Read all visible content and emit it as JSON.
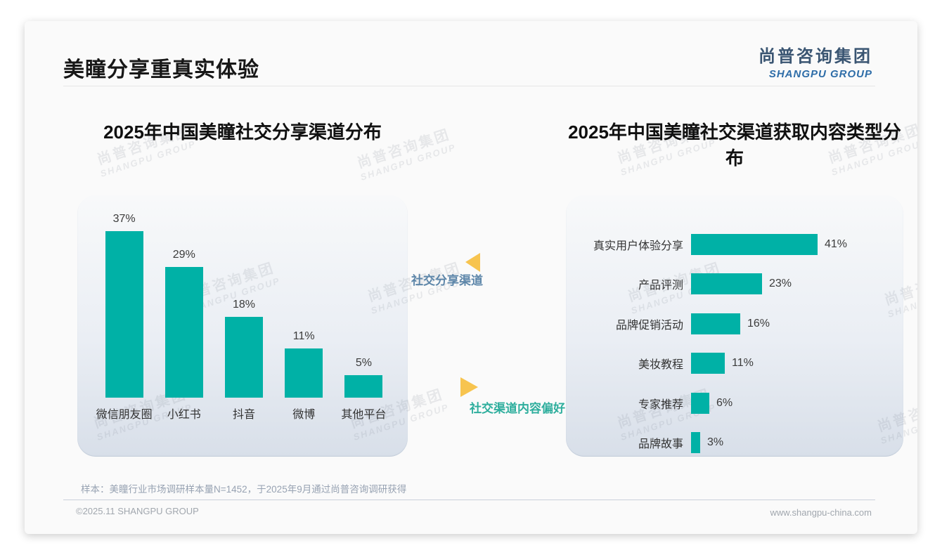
{
  "slide": {
    "title": "美瞳分享重真实体验",
    "logo": {
      "cn": "尚普咨询集团",
      "en": "SHANGPU GROUP"
    },
    "watermark": {
      "cn": "尚普咨询集团",
      "en": "SHANGPU GROUP"
    },
    "annotations": {
      "left": "社交分享渠道",
      "right": "社交渠道内容偏好"
    },
    "note": "样本：美瞳行业市场调研样本量N=1452，于2025年9月通过尚普咨询调研获得",
    "footer": {
      "left": "©2025.11 SHANGPU GROUP",
      "right": "www.shangpu-china.com"
    },
    "colors": {
      "bar": "#00b1a6",
      "accent_yellow": "#f7c44f",
      "annotation_left": "#5d86a9",
      "annotation_right": "#2eae9d"
    }
  },
  "chart_data": [
    {
      "type": "bar",
      "orientation": "vertical",
      "title": "2025年中国美瞳社交分享渠道分布",
      "categories": [
        "微信朋友圈",
        "小红书",
        "抖音",
        "微博",
        "其他平台"
      ],
      "values": [
        37,
        29,
        18,
        11,
        5
      ],
      "unit": "%",
      "ylim": [
        0,
        40
      ],
      "grid": false,
      "legend": "none",
      "bar_color": "#00b1a6"
    },
    {
      "type": "bar",
      "orientation": "horizontal",
      "title": "2025年中国美瞳社交渠道获取内容类型分布",
      "categories": [
        "真实用户体验分享",
        "产品评测",
        "品牌促销活动",
        "美妆教程",
        "专家推荐",
        "品牌故事"
      ],
      "values": [
        41,
        23,
        16,
        11,
        6,
        3
      ],
      "unit": "%",
      "xlim": [
        0,
        45
      ],
      "grid": false,
      "legend": "none",
      "bar_color": "#00b1a6"
    }
  ]
}
